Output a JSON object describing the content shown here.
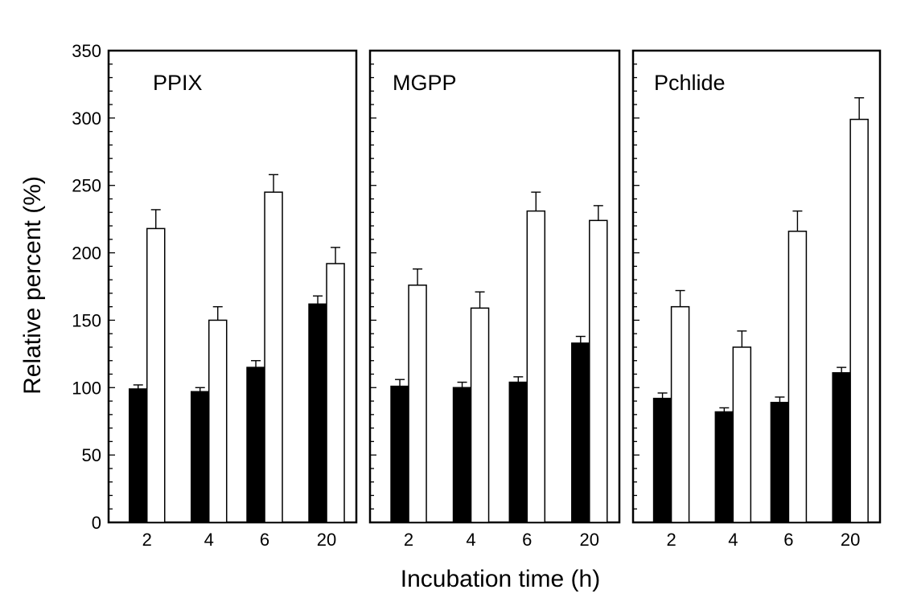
{
  "chart_data": {
    "type": "bar",
    "xlabel": "Incubation time (h)",
    "ylabel": "Relative percent (%)",
    "ylim": [
      0,
      350
    ],
    "yticks": [
      "0",
      "50",
      "100",
      "150",
      "200",
      "250",
      "300",
      "350"
    ],
    "categories": [
      "2",
      "4",
      "6",
      "20"
    ],
    "colors": {
      "filled": "#000000",
      "open": "#ffffff",
      "stroke": "#000000"
    },
    "panels": [
      {
        "title": "PPIX",
        "series": [
          {
            "fill": "filled",
            "values": [
              99,
              97,
              115,
              162
            ],
            "errors": [
              3,
              3,
              5,
              6
            ]
          },
          {
            "fill": "open",
            "values": [
              218,
              150,
              245,
              192
            ],
            "errors": [
              14,
              10,
              13,
              12
            ]
          }
        ]
      },
      {
        "title": "MGPP",
        "series": [
          {
            "fill": "filled",
            "values": [
              101,
              100,
              104,
              133
            ],
            "errors": [
              5,
              4,
              4,
              5
            ]
          },
          {
            "fill": "open",
            "values": [
              176,
              159,
              231,
              224
            ],
            "errors": [
              12,
              12,
              14,
              11
            ]
          }
        ]
      },
      {
        "title": "Pchlide",
        "series": [
          {
            "fill": "filled",
            "values": [
              92,
              82,
              89,
              111
            ],
            "errors": [
              4,
              3,
              4,
              4
            ]
          },
          {
            "fill": "open",
            "values": [
              160,
              130,
              216,
              299
            ],
            "errors": [
              12,
              12,
              15,
              16
            ]
          }
        ]
      }
    ]
  }
}
